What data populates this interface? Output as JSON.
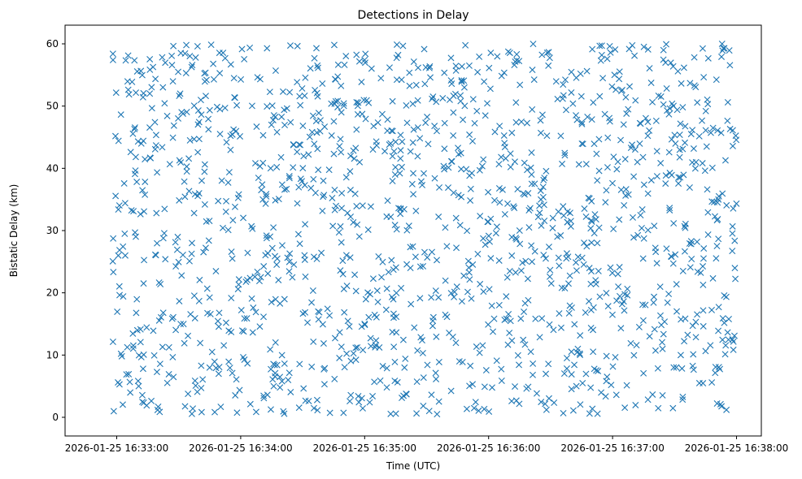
{
  "chart_data": {
    "type": "scatter",
    "title": "Detections in Delay",
    "xlabel": "Time (UTC)",
    "ylabel": "Bistatic Delay (km)",
    "marker": "x",
    "color": "#1f77b4",
    "x_ticks": [
      {
        "t": 0,
        "label": "2026-01-25 16:33:00"
      },
      {
        "t": 60,
        "label": "2026-01-25 16:34:00"
      },
      {
        "t": 120,
        "label": "2026-01-25 16:35:00"
      },
      {
        "t": 180,
        "label": "2026-01-25 16:36:00"
      },
      {
        "t": 240,
        "label": "2026-01-25 16:37:00"
      },
      {
        "t": 300,
        "label": "2026-01-25 16:38:00"
      }
    ],
    "y_ticks": [
      0,
      10,
      20,
      30,
      40,
      50,
      60
    ],
    "xlim_seconds_after_16_33_00": [
      -25,
      312
    ],
    "ylim": [
      -3,
      63
    ],
    "series": [
      {
        "name": "detections",
        "n_points": 1500,
        "x_range_seconds_after_16_33_00": [
          -2,
          300
        ],
        "y_range_km": [
          0.5,
          60
        ],
        "distribution": "approximately uniform",
        "sample_points": [
          {
            "t": 13,
            "y": 21.5
          },
          {
            "t": 100,
            "y": 38
          },
          {
            "t": 120,
            "y": 15
          },
          {
            "t": 153,
            "y": 15.5
          },
          {
            "t": 195,
            "y": 30
          },
          {
            "t": 252,
            "y": 41
          },
          {
            "t": 273,
            "y": 10
          },
          {
            "t": 293,
            "y": 60
          },
          {
            "t": 298,
            "y": 12.5
          }
        ]
      }
    ]
  }
}
